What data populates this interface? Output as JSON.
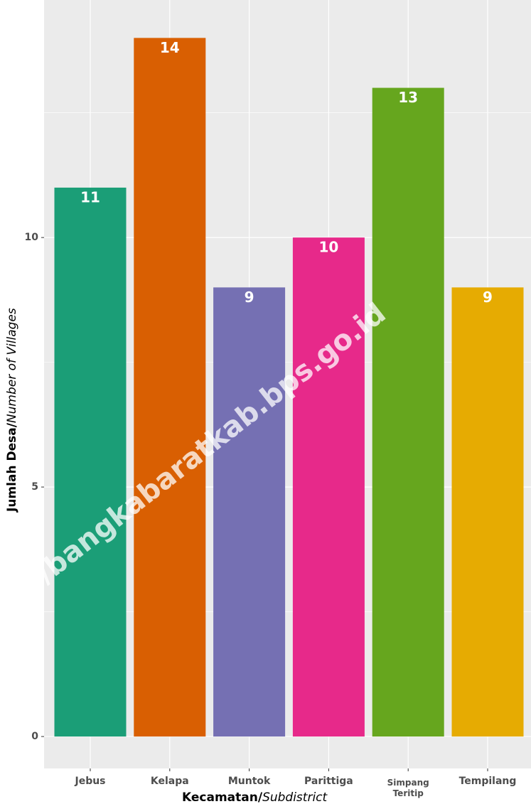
{
  "chart_data": {
    "type": "bar",
    "categories": [
      "Jebus",
      "Kelapa",
      "Muntok",
      "Parittiga",
      "Simpang\nTeritip",
      "Tempilang"
    ],
    "values": [
      11,
      14,
      9,
      10,
      13,
      9
    ],
    "colors": [
      "#1b9e77",
      "#d95f02",
      "#7570b3",
      "#e7298a",
      "#66a61e",
      "#e6ab02"
    ],
    "ylim": [
      -0.64,
      14.76
    ],
    "yticks": [
      0,
      5,
      10
    ],
    "grid": true,
    "xlabel": {
      "bold": "Kecamatan/",
      "italic": "Subdistrict"
    },
    "ylabel": {
      "bold": "Jumlah Desa/",
      "italic": "Number of Villages"
    },
    "watermark": "https://bangkabaratkab.bps.go.id"
  }
}
